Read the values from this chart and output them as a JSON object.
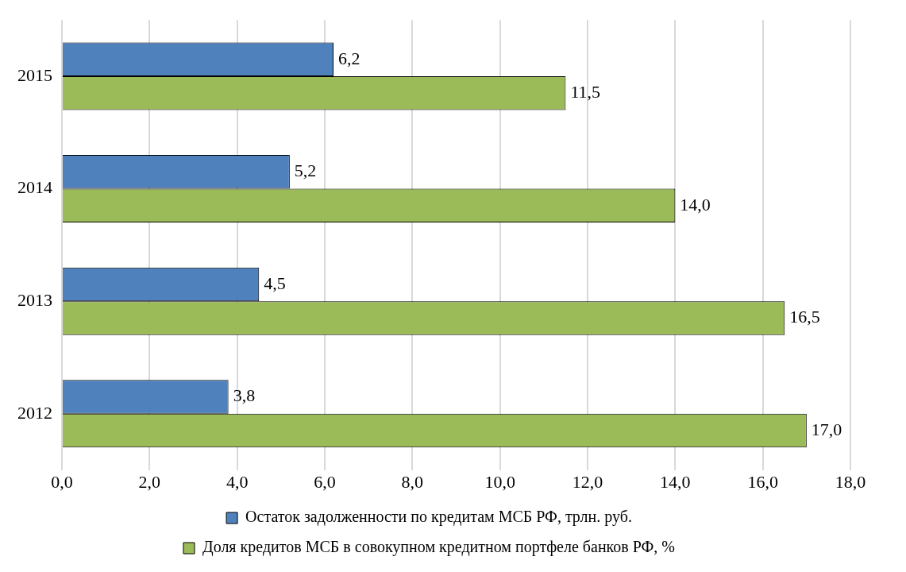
{
  "chart_data": {
    "type": "bar",
    "orientation": "horizontal",
    "categories": [
      "2015",
      "2014",
      "2013",
      "2012"
    ],
    "series": [
      {
        "name": "Остаток задолженности по кредитам МСБ РФ, трлн. руб.",
        "color": "#4f81bd",
        "values": [
          6.2,
          5.2,
          4.5,
          3.8
        ],
        "value_labels": [
          "6,2",
          "5,2",
          "4,5",
          "3,8"
        ]
      },
      {
        "name": "Доля кредитов МСБ в совокупном кредитном портфеле банков РФ, %",
        "color": "#9bbb59",
        "values": [
          11.5,
          14.0,
          16.5,
          17.0
        ],
        "value_labels": [
          "11,5",
          "14,0",
          "16,5",
          "17,0"
        ]
      }
    ],
    "xlim": [
      0,
      18
    ],
    "xticks": [
      {
        "value": 0,
        "label": "0,0"
      },
      {
        "value": 2,
        "label": "2,0"
      },
      {
        "value": 4,
        "label": "4,0"
      },
      {
        "value": 6,
        "label": "6,0"
      },
      {
        "value": 8,
        "label": "8,0"
      },
      {
        "value": 10,
        "label": "10,0"
      },
      {
        "value": 12,
        "label": "12,0"
      },
      {
        "value": 14,
        "label": "14,0"
      },
      {
        "value": 16,
        "label": "16,0"
      },
      {
        "value": 18,
        "label": "18,0"
      }
    ],
    "grid": "x",
    "legend": "bottom"
  }
}
